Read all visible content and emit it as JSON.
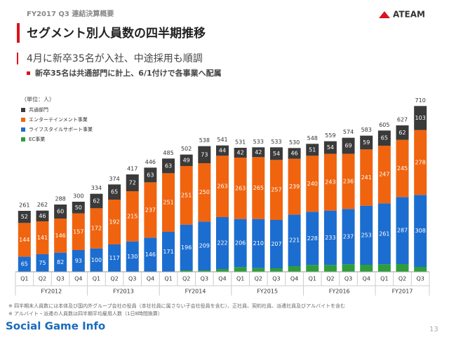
{
  "header": {
    "section": "FY2017 Q3 連結決算概要",
    "title": "セグメント別人員数の四半期推移",
    "logo": "ATEAM",
    "subtitle": "4月に新卒35名が入社、中途採用も順調",
    "bullet": "新卒35名は共通部門に計上、6/1付けで各事業へ配属"
  },
  "chart_data": {
    "type": "stacked_bar",
    "unit": "（単位：人）",
    "groups": [
      {
        "label": "FY2012",
        "categories": [
          "Q1",
          "Q2",
          "Q3",
          "Q4"
        ]
      },
      {
        "label": "FY2013",
        "categories": [
          "Q1",
          "Q2",
          "Q3",
          "Q4"
        ]
      },
      {
        "label": "FY2014",
        "categories": [
          "Q1",
          "Q2",
          "Q3",
          "Q4"
        ]
      },
      {
        "label": "FY2015",
        "categories": [
          "Q1",
          "Q2",
          "Q3",
          "Q4"
        ]
      },
      {
        "label": "FY2016",
        "categories": [
          "Q1",
          "Q2",
          "Q3",
          "Q4"
        ]
      },
      {
        "label": "FY2017",
        "categories": [
          "Q1",
          "Q2",
          "Q3"
        ]
      }
    ],
    "series": [
      {
        "name": "EC事業",
        "color": "#2e9e3a",
        "labels": false,
        "values": [
          0,
          0,
          0,
          0,
          0,
          0,
          0,
          0,
          0,
          6,
          6,
          12,
          20,
          16,
          15,
          24,
          29,
          29,
          32,
          30,
          32,
          33,
          21
        ]
      },
      {
        "name": "ライフスタイルサポート事業",
        "color": "#1c6dd0",
        "labels": true,
        "values": [
          65,
          75,
          82,
          93,
          100,
          117,
          130,
          146,
          171,
          196,
          209,
          222,
          206,
          210,
          207,
          221,
          228,
          233,
          237,
          253,
          261,
          287,
          308
        ]
      },
      {
        "name": "エンターテインメント事業",
        "color": "#f0640f",
        "labels": true,
        "values": [
          144,
          141,
          146,
          157,
          172,
          192,
          215,
          237,
          251,
          251,
          250,
          263,
          263,
          265,
          257,
          239,
          240,
          243,
          236,
          241,
          247,
          245,
          278
        ]
      },
      {
        "name": "共通部門",
        "color": "#3a3a3a",
        "labels": true,
        "values": [
          52,
          46,
          60,
          50,
          62,
          65,
          72,
          63,
          63,
          49,
          73,
          44,
          42,
          42,
          54,
          46,
          51,
          54,
          69,
          59,
          65,
          62,
          103
        ]
      }
    ],
    "totals": [
      261,
      262,
      288,
      300,
      334,
      374,
      417,
      446,
      485,
      502,
      538,
      541,
      531,
      533,
      533,
      530,
      548,
      559,
      574,
      583,
      605,
      627,
      710
    ],
    "ylim": [
      0,
      720
    ]
  },
  "footnotes": [
    "※ 四半期末人員数には本体及び国内外グループ会社の役員（本社社員に属さない子会社役員を含む）、正社員、契約社員、派遣社員及びアルバイトを含む",
    "※ アルバイト・派遣の人員数は四半期平均雇用人数（1日8時間換算）"
  ],
  "footer": {
    "source": "Social Game Info",
    "page": "13"
  }
}
